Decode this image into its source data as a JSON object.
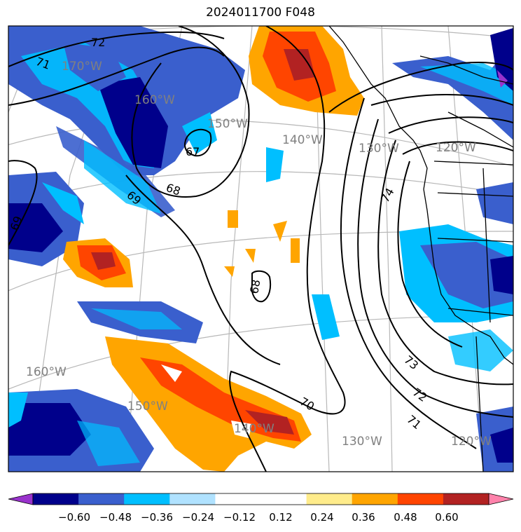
{
  "title": "2024011700 F048",
  "graticule_labels": {
    "lon_170w": "170°W",
    "lon_160w_n": "160°W",
    "lon_150w_n": "150°W",
    "lon_140w_n": "140°W",
    "lon_130w_n": "130°W",
    "lon_120w_n": "120°W",
    "lon_160w_s": "160°W",
    "lon_150w_s": "150°W",
    "lon_140w_s": "140°W",
    "lon_130w_s": "130°W",
    "lon_120w_s": "120°W"
  },
  "contour_labels": {
    "c72_nw": "72",
    "c71_nw": "71",
    "c67": "67",
    "c68_center": "68",
    "c69_nw": "69",
    "c69_w": "69",
    "c68_south": "68",
    "c70": "70",
    "c71": "71",
    "c72": "72",
    "c73": "73",
    "c74": "74"
  },
  "colorbar": {
    "colors": [
      "#9932cc",
      "#00008b",
      "#3a5fcd",
      "#00bfff",
      "#b0e2ff",
      "#ffffff",
      "#ffffff",
      "#ffec8b",
      "#ffa500",
      "#ff4500",
      "#b22222",
      "#ff82ab"
    ],
    "ticks": [
      "−0.60",
      "−0.48",
      "−0.36",
      "−0.24",
      "−0.12",
      "0.12",
      "0.24",
      "0.36",
      "0.48",
      "0.60"
    ]
  }
}
